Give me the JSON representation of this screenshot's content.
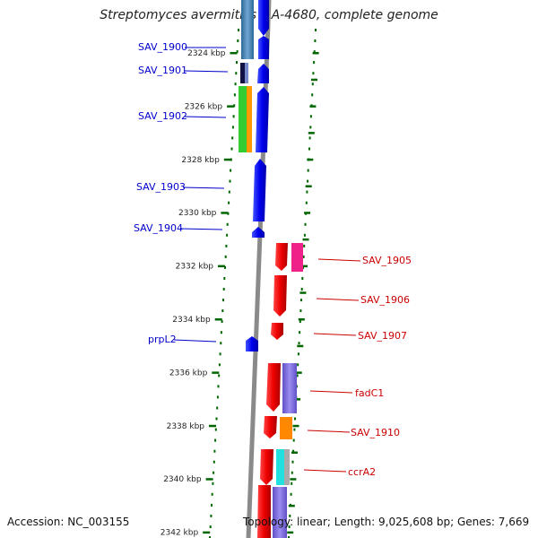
{
  "title": "Streptomyces avermitilis MA-4680, complete genome",
  "accession_text": "Accession: NC_003155",
  "topology_text": "Topology: linear; Length: 9,025,608 bp; Genes: 7,669",
  "kbp_ticks": [
    "2324 kbp",
    "2326 kbp",
    "2328 kbp",
    "2330 kbp",
    "2332 kbp",
    "2334 kbp",
    "2336 kbp",
    "2338 kbp",
    "2340 kbp",
    "2342 kbp"
  ],
  "left_labels": [
    "SAV_1900",
    "SAV_1901",
    "SAV_1902",
    "SAV_1903",
    "SAV_1904",
    "prpL2"
  ],
  "right_labels": [
    "SAV_1905",
    "SAV_1906",
    "SAV_1907",
    "fadC1",
    "SAV_1910",
    "ccrA2"
  ],
  "colors": {
    "left_label": "#0000cc",
    "right_label": "#cc0000",
    "tick": "#006600",
    "gene_blue": "#0000ee",
    "gene_red": "#ee0000",
    "backbone": "#888888"
  }
}
